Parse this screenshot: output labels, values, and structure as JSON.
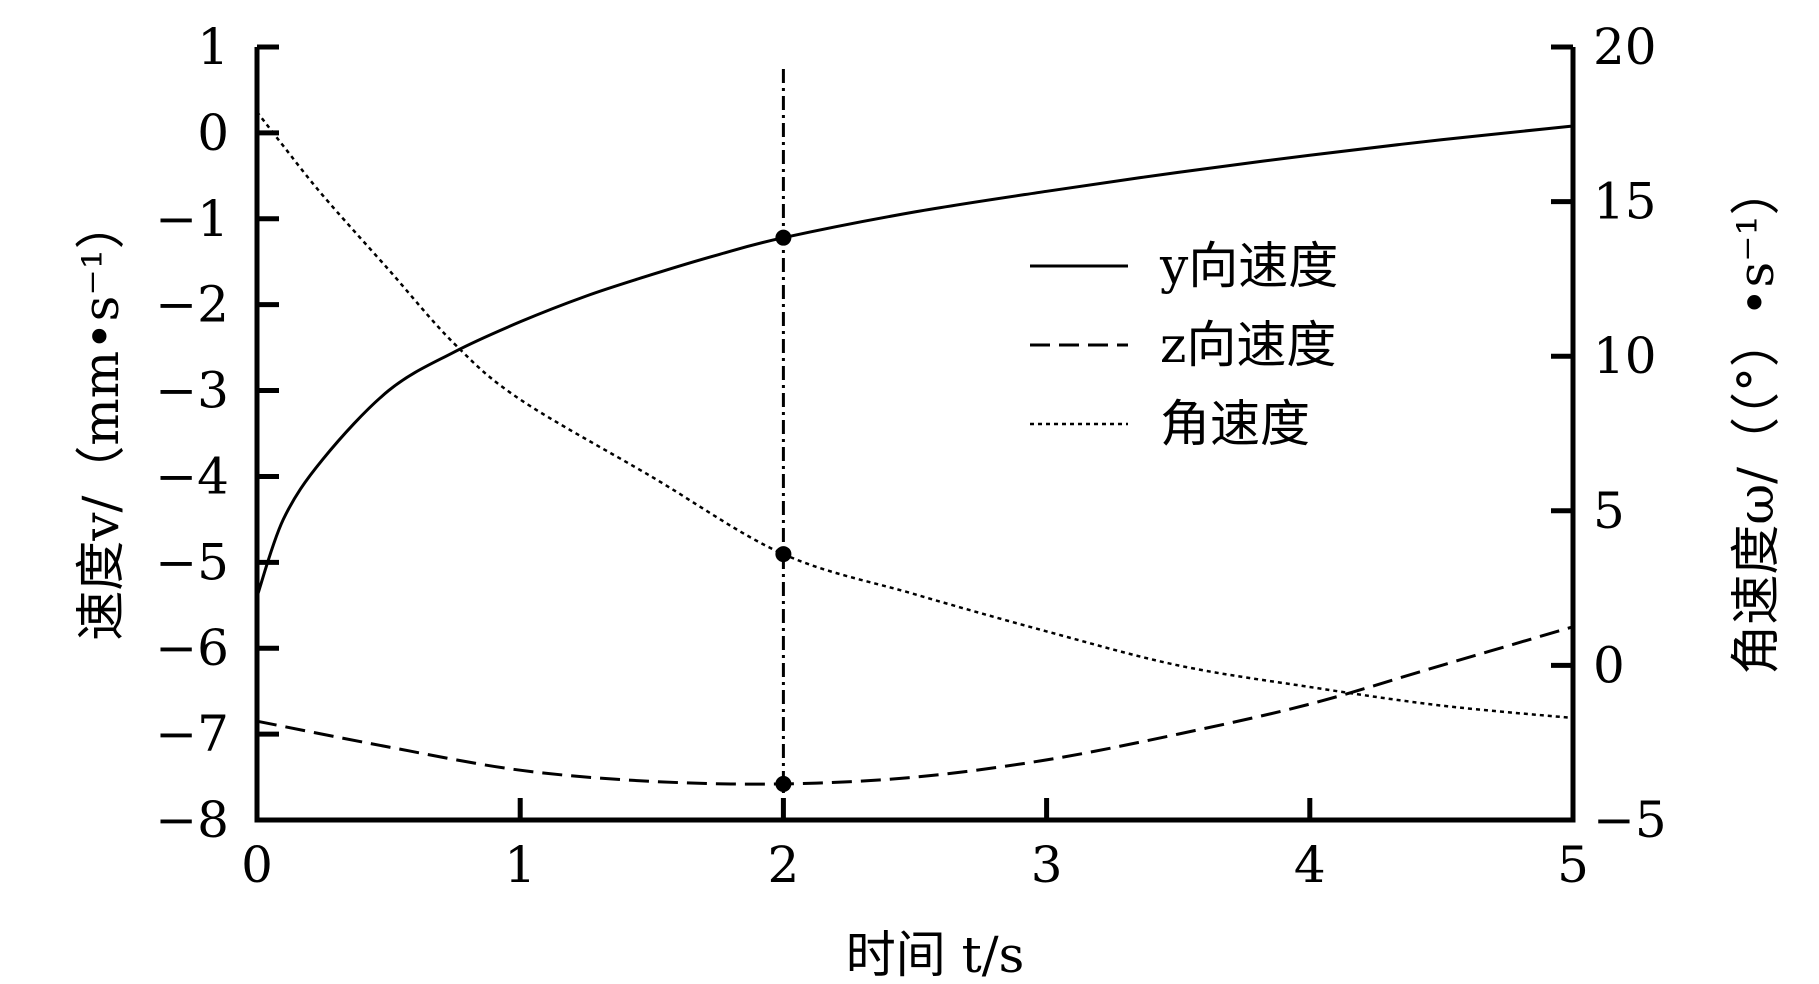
{
  "chart_data": {
    "type": "line",
    "xlabel": "时间 t/s",
    "ylabel_left": "速度v/（mm•s⁻¹）",
    "ylabel_right": "角速度ω/（（°）•s⁻¹）",
    "xlim": [
      0,
      5
    ],
    "ylim_left": [
      -8,
      1
    ],
    "ylim_right": [
      -5,
      20
    ],
    "x_ticks": [
      0,
      1,
      2,
      3,
      4,
      5
    ],
    "y_ticks_left": [
      1,
      0,
      -1,
      -2,
      -3,
      -4,
      -5,
      -6,
      -7,
      -8
    ],
    "y_ticks_right": [
      20,
      15,
      10,
      5,
      0,
      -5
    ],
    "grid": false,
    "legend_position": "upper-right-center",
    "reference_line_x": 2,
    "series": [
      {
        "name": "y向速度",
        "axis": "left",
        "style": "solid",
        "x": [
          0,
          0.1,
          0.25,
          0.5,
          0.75,
          1.0,
          1.25,
          1.5,
          1.75,
          2.0,
          2.5,
          3.0,
          3.5,
          4.0,
          4.5,
          5.0
        ],
        "values": [
          -5.4,
          -4.5,
          -3.8,
          -3.0,
          -2.55,
          -2.2,
          -1.9,
          -1.65,
          -1.42,
          -1.22,
          -0.92,
          -0.68,
          -0.46,
          -0.26,
          -0.08,
          0.08
        ]
      },
      {
        "name": "z向速度",
        "axis": "left",
        "style": "dashed",
        "x": [
          0,
          0.5,
          1.0,
          1.5,
          2.0,
          2.5,
          3.0,
          3.5,
          4.0,
          4.5,
          5.0
        ],
        "values": [
          -6.85,
          -7.15,
          -7.42,
          -7.55,
          -7.58,
          -7.5,
          -7.3,
          -7.0,
          -6.65,
          -6.2,
          -5.75
        ]
      },
      {
        "name": "角速度",
        "axis": "right",
        "style": "dotted",
        "x": [
          0,
          0.1,
          0.25,
          0.5,
          0.75,
          1.0,
          1.5,
          2.0,
          2.5,
          3.0,
          3.5,
          4.0,
          4.5,
          5.0
        ],
        "values": [
          17.9,
          16.8,
          15.2,
          12.8,
          10.4,
          8.6,
          6.1,
          3.6,
          2.3,
          1.1,
          0.0,
          -0.7,
          -1.3,
          -1.7
        ]
      }
    ],
    "markers": [
      {
        "series": "y向速度",
        "x": 2,
        "value": -1.22
      },
      {
        "series": "z向速度",
        "x": 2,
        "value": -7.58
      },
      {
        "series": "角速度",
        "x": 2,
        "value": 3.6
      }
    ]
  }
}
